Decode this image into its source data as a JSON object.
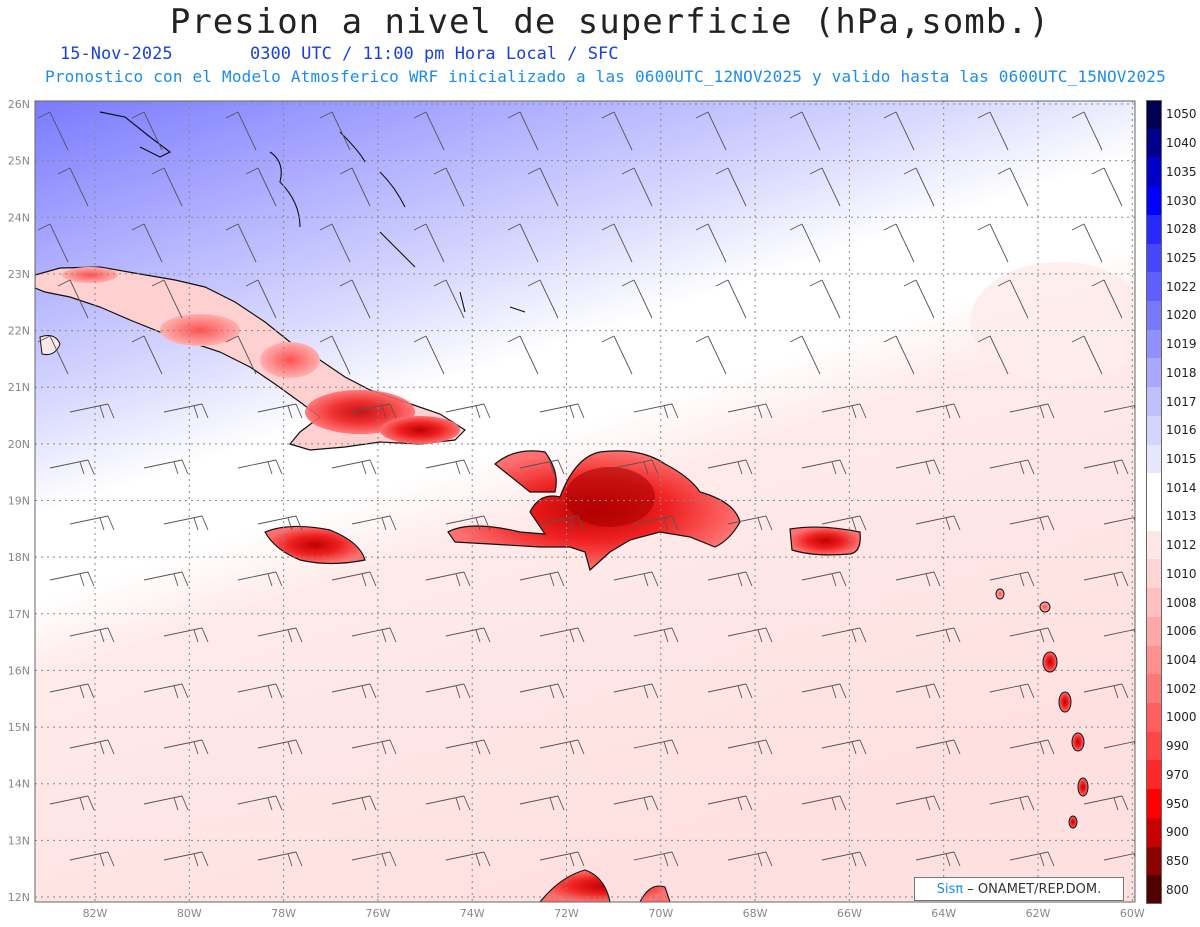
{
  "header": {
    "title": "Presion a nivel de superficie (hPa,somb.)",
    "date": "15-Nov-2025",
    "time_info": "0300 UTC / 11:00 pm Hora Local / SFC",
    "model_info": "Pronostico con el Modelo Atmosferico WRF inicializado a las 0600UTC_12NOV2025 y valido hasta las  0600UTC_15NOV2025"
  },
  "axes": {
    "lat_labels": [
      "26N",
      "25N",
      "24N",
      "23N",
      "22N",
      "21N",
      "20N",
      "19N",
      "18N",
      "17N",
      "16N",
      "15N",
      "14N",
      "13N",
      "12N"
    ],
    "lon_labels": [
      "82W",
      "80W",
      "78W",
      "76W",
      "74W",
      "72W",
      "70W",
      "68W",
      "66W",
      "64W",
      "62W",
      "60W"
    ]
  },
  "legend": {
    "levels": [
      "1050",
      "1040",
      "1035",
      "1030",
      "1028",
      "1025",
      "1022",
      "1020",
      "1019",
      "1018",
      "1017",
      "1016",
      "1015",
      "1014",
      "1013",
      "1012",
      "1010",
      "1008",
      "1006",
      "1004",
      "1002",
      "1000",
      "990",
      "970",
      "950",
      "900",
      "850",
      "800"
    ],
    "colors": [
      "#000050",
      "#00008c",
      "#0000c8",
      "#0000ff",
      "#2828ff",
      "#4646ff",
      "#5f5fff",
      "#7878ff",
      "#9090ff",
      "#a8a8ff",
      "#c0c0ff",
      "#d4d4ff",
      "#e6e6ff",
      "#ffffff",
      "#ffffff",
      "#ffe6e6",
      "#ffd4d4",
      "#ffc0c0",
      "#ffa8a8",
      "#ff9090",
      "#ff7878",
      "#ff5f5f",
      "#ff4646",
      "#ff2828",
      "#ff0000",
      "#c80000",
      "#8c0000",
      "#500000"
    ]
  },
  "credit": {
    "brand": "Sisπ",
    "org": "– ONAMET/REP.DOM."
  }
}
